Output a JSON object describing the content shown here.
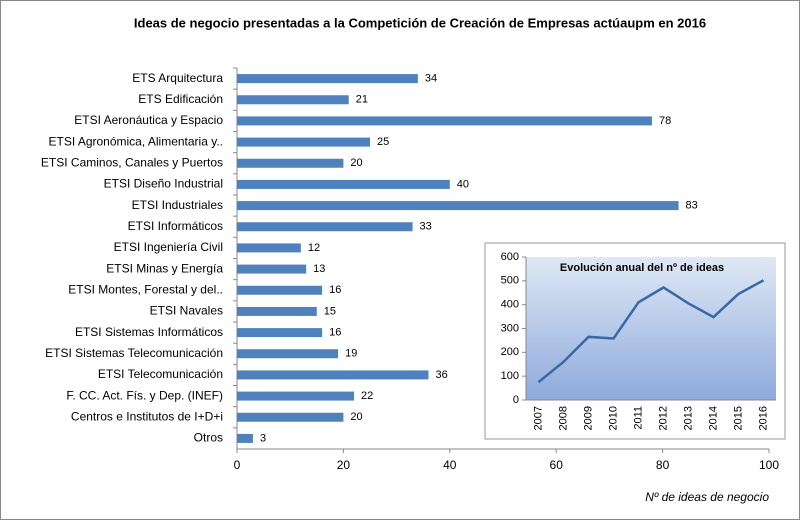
{
  "chart_data": [
    {
      "type": "barh",
      "title": "Ideas de negocio presentadas a la Competición de Creación de Empresas actúaupm en 2016",
      "categories": [
        "ETS Arquitectura",
        "ETS Edificación",
        "ETSI Aeronáutica y Espacio",
        "ETSI Agronómica, Alimentaria y..",
        "ETSI Caminos, Canales y Puertos",
        "ETSI Diseño Industrial",
        "ETSI Industriales",
        "ETSI Informáticos",
        "ETSI Ingeniería Civil",
        "ETSI Minas y Energía",
        "ETSI Montes, Forestal y del..",
        "ETSI Navales",
        "ETSI Sistemas Informáticos",
        "ETSI Sistemas Telecomunicación",
        "ETSI Telecomunicación",
        "F. CC. Act. Fís. y Dep. (INEF)",
        "Centros e Institutos de I+D+i",
        "Otros"
      ],
      "values": [
        34,
        21,
        78,
        25,
        20,
        40,
        83,
        33,
        12,
        13,
        16,
        15,
        16,
        19,
        36,
        22,
        20,
        3
      ],
      "color": "#4f81bd",
      "xlim": [
        0,
        100
      ],
      "xticks": [
        0,
        20,
        40,
        60,
        80,
        100
      ],
      "xlabel": "Nº de ideas de negocio"
    },
    {
      "type": "line",
      "title": "Evolución anual del nº de ideas",
      "categories": [
        "2007",
        "2008",
        "2009",
        "2010",
        "2011",
        "2012",
        "2013",
        "2014",
        "2015",
        "2016"
      ],
      "values": [
        75,
        160,
        265,
        258,
        410,
        472,
        405,
        348,
        445,
        502
      ],
      "color": "#3a67a8",
      "ylim": [
        0,
        600
      ],
      "yticks": [
        0,
        100,
        200,
        300,
        400,
        500,
        600
      ]
    }
  ]
}
